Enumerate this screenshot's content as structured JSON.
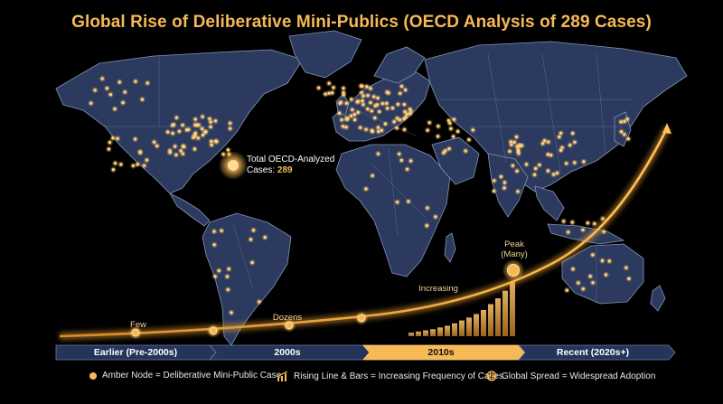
{
  "title": "Global Rise of Deliberative Mini-Publics (OECD Analysis of 289 Cases)",
  "total": {
    "label_line1": "Total OECD-Analyzed",
    "label_line2": "Cases:",
    "value": "289"
  },
  "stages": [
    {
      "label": "Few"
    },
    {
      "label": "Dozens"
    },
    {
      "label": "Increasing"
    },
    {
      "label_line1": "Peak",
      "label_line2": "(Many)"
    }
  ],
  "eras": [
    "Earlier (Pre-2000s)",
    "2000s",
    "2010s",
    "Recent (2020s+)"
  ],
  "legend": {
    "node": "Amber Node = Deliberative Mini-Public Case",
    "rise": "Rising Line & Bars = Increasing Frequency of Cases",
    "spread": "Global Spread = Widespread Adoption"
  },
  "colors": {
    "amber": "#f7b955",
    "land": "#2b3a5e",
    "border": "#8394b8",
    "era_highlight": "#f7b955",
    "era_base": "#24345a"
  },
  "chart_data": {
    "type": "bar",
    "x_order": [
      "Earlier (Pre-2000s)",
      "2000s",
      "2010s",
      "Recent (2020s+)"
    ],
    "bar_values": [
      0.6,
      0.8,
      1.0,
      1.2,
      1.5,
      1.8,
      2.2,
      2.7,
      3.2,
      3.8,
      4.5,
      5.5,
      6.5,
      7.8,
      9.3
    ],
    "trend_labels": [
      "Few",
      "Dozens",
      "Increasing",
      "Peak (Many)"
    ],
    "total_cases": 289,
    "legend": [
      "Amber Node = Deliberative Mini-Public Case",
      "Rising Line & Bars = Increasing Frequency of Cases",
      "Global Spread = Widespread Adoption"
    ]
  }
}
